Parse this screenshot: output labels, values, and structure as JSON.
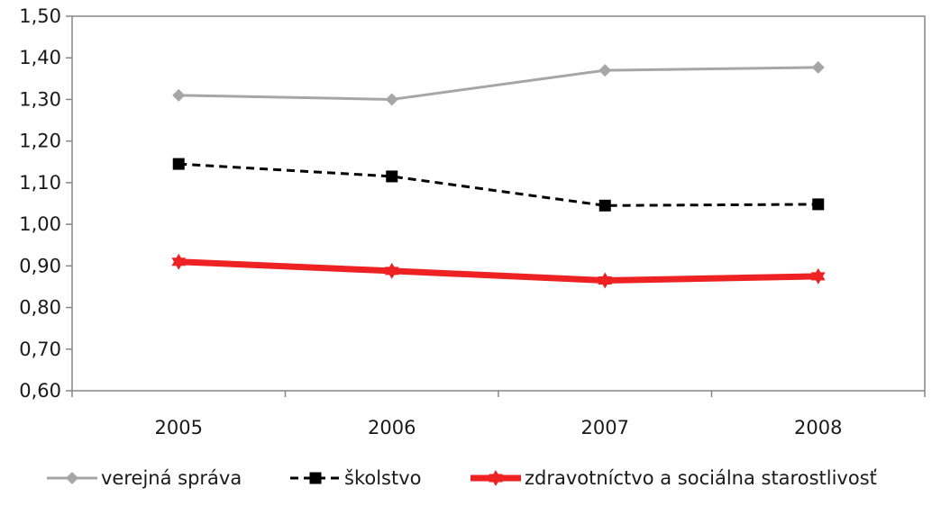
{
  "chart_data": {
    "type": "line",
    "categories": [
      "2005",
      "2006",
      "2007",
      "2008"
    ],
    "ylim": [
      0.6,
      1.5
    ],
    "ytick_labels": [
      "0,60",
      "0,70",
      "0,80",
      "0,90",
      "1,00",
      "1,10",
      "1,20",
      "1,30",
      "1,40",
      "1,50"
    ],
    "legend_position": "bottom",
    "grid": false,
    "series": [
      {
        "name": "verejná správa",
        "values": [
          1.31,
          1.3,
          1.37,
          1.377
        ],
        "color": "#a6a6a6",
        "marker": "diamond",
        "dash": "solid"
      },
      {
        "name": "školstvo",
        "values": [
          1.145,
          1.115,
          1.045,
          1.048
        ],
        "color": "#000000",
        "marker": "square",
        "dash": "dashed"
      },
      {
        "name": "zdravotníctvo a sociálna starostlivosť",
        "values": [
          0.91,
          0.888,
          0.865,
          0.875
        ],
        "color": "#ee2222",
        "marker": "triangle",
        "dash": "solid"
      }
    ]
  }
}
